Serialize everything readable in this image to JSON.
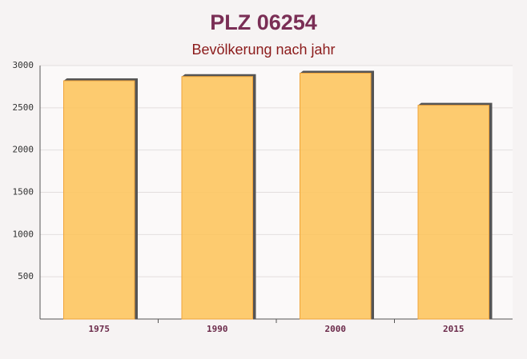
{
  "chart_data": {
    "type": "bar",
    "title": "PLZ 06254",
    "subtitle": "Bevölkerung nach jahr",
    "categories": [
      "1975",
      "1990",
      "2000",
      "2015"
    ],
    "values": [
      2820,
      2870,
      2910,
      2530
    ],
    "color": "#fdc55f",
    "ylim": [
      0,
      3000
    ],
    "yticks": [
      500,
      1000,
      1500,
      2000,
      2500,
      3000
    ],
    "grid": true
  }
}
